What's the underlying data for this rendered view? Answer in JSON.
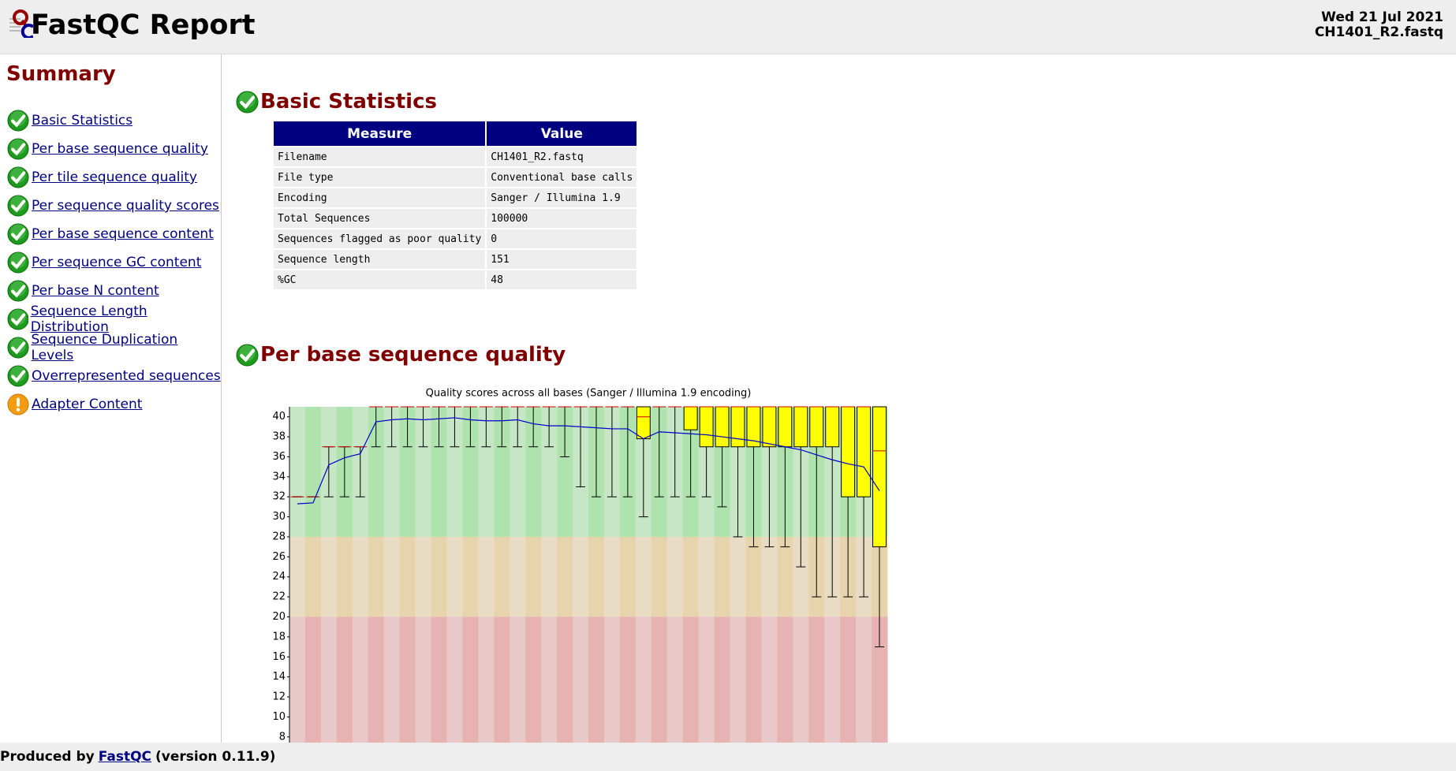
{
  "header": {
    "title": "FastQC Report",
    "date": "Wed 21 Jul 2021",
    "filename": "CH1401_R2.fastq"
  },
  "summary": {
    "title": "Summary",
    "items": [
      {
        "label": "Basic Statistics",
        "status": "pass"
      },
      {
        "label": "Per base sequence quality",
        "status": "pass"
      },
      {
        "label": "Per tile sequence quality",
        "status": "pass"
      },
      {
        "label": "Per sequence quality scores",
        "status": "pass"
      },
      {
        "label": "Per base sequence content",
        "status": "pass"
      },
      {
        "label": "Per sequence GC content",
        "status": "pass"
      },
      {
        "label": "Per base N content",
        "status": "pass"
      },
      {
        "label": "Sequence Length Distribution",
        "status": "pass"
      },
      {
        "label": "Sequence Duplication Levels",
        "status": "pass"
      },
      {
        "label": "Overrepresented sequences",
        "status": "pass"
      },
      {
        "label": "Adapter Content",
        "status": "warn"
      }
    ]
  },
  "basic_statistics": {
    "title": "Basic Statistics",
    "status": "pass",
    "columns": [
      "Measure",
      "Value"
    ],
    "rows": [
      [
        "Filename",
        "CH1401_R2.fastq"
      ],
      [
        "File type",
        "Conventional base calls"
      ],
      [
        "Encoding",
        "Sanger / Illumina 1.9"
      ],
      [
        "Total Sequences",
        "100000"
      ],
      [
        "Sequences flagged as poor quality",
        "0"
      ],
      [
        "Sequence length",
        "151"
      ],
      [
        "%GC",
        "48"
      ]
    ]
  },
  "per_base_quality": {
    "title": "Per base sequence quality",
    "status": "pass"
  },
  "chart_data": {
    "type": "box",
    "title": "Quality scores across all bases (Sanger / Illumina 1.9 encoding)",
    "ylim": [
      7,
      41
    ],
    "yticks": [
      8,
      10,
      12,
      14,
      16,
      18,
      20,
      22,
      24,
      26,
      28,
      30,
      32,
      34,
      36,
      38,
      40
    ],
    "zones": [
      {
        "from": 28,
        "to": 41,
        "colors": [
          "#c6e6c6",
          "#aee3ae"
        ]
      },
      {
        "from": 20,
        "to": 28,
        "colors": [
          "#e8dcc4",
          "#e8d4ac"
        ]
      },
      {
        "from": 7,
        "to": 20,
        "colors": [
          "#e8c8c8",
          "#e6b2b2"
        ]
      }
    ],
    "box_color": "#ffff00",
    "median_color": "#cc0000",
    "mean_color": "#0000cc",
    "low": [
      32,
      32,
      32,
      32,
      32,
      37,
      37,
      37,
      37,
      37,
      37,
      37,
      37,
      37,
      37,
      37,
      37,
      36,
      33,
      32,
      32,
      32,
      30,
      32,
      32,
      32,
      32,
      31,
      28,
      27,
      27,
      27,
      25,
      22,
      22,
      22,
      22,
      17
    ],
    "q1": [
      32,
      32,
      37,
      37,
      37,
      41,
      41,
      41,
      41,
      41,
      41,
      41,
      41,
      41,
      41,
      41,
      41,
      41,
      41,
      41,
      41,
      41,
      37.8,
      41,
      41,
      38.7,
      37,
      37,
      37,
      37,
      37,
      37,
      37,
      37,
      37,
      32,
      32,
      27
    ],
    "median": [
      32,
      32,
      37,
      37,
      37,
      41,
      41,
      41,
      41,
      41,
      41,
      41,
      41,
      41,
      41,
      41,
      41,
      41,
      41,
      41,
      41,
      41,
      40,
      41,
      41,
      41,
      41,
      41,
      41,
      41,
      41,
      41,
      41,
      41,
      41,
      41,
      41,
      36.6
    ],
    "q3": [
      32,
      32,
      37,
      37,
      37,
      41,
      41,
      41,
      41,
      41,
      41,
      41,
      41,
      41,
      41,
      41,
      41,
      41,
      41,
      41,
      41,
      41,
      41,
      41,
      41,
      41,
      41,
      41,
      41,
      41,
      41,
      41,
      41,
      41,
      41,
      41,
      41,
      41
    ],
    "high": [
      32,
      32,
      37,
      37,
      37,
      41,
      41,
      41,
      41,
      41,
      41,
      41,
      41,
      41,
      41,
      41,
      41,
      41,
      41,
      41,
      41,
      41,
      41,
      41,
      41,
      41,
      41,
      41,
      41,
      41,
      41,
      41,
      41,
      41,
      41,
      41,
      41,
      41
    ],
    "mean": [
      31.3,
      31.4,
      35.2,
      35.9,
      36.3,
      39.5,
      39.7,
      39.8,
      39.7,
      39.8,
      39.9,
      39.7,
      39.6,
      39.6,
      39.7,
      39.3,
      39.1,
      39.1,
      39.0,
      38.9,
      38.8,
      38.8,
      37.8,
      38.5,
      38.4,
      38.3,
      38.2,
      38.0,
      37.8,
      37.6,
      37.3,
      37.0,
      36.7,
      36.2,
      35.7,
      35.3,
      35.0,
      32.6
    ]
  },
  "footer": {
    "prefix": "Produced by",
    "link": "FastQC",
    "suffix": "(version 0.11.9)"
  }
}
